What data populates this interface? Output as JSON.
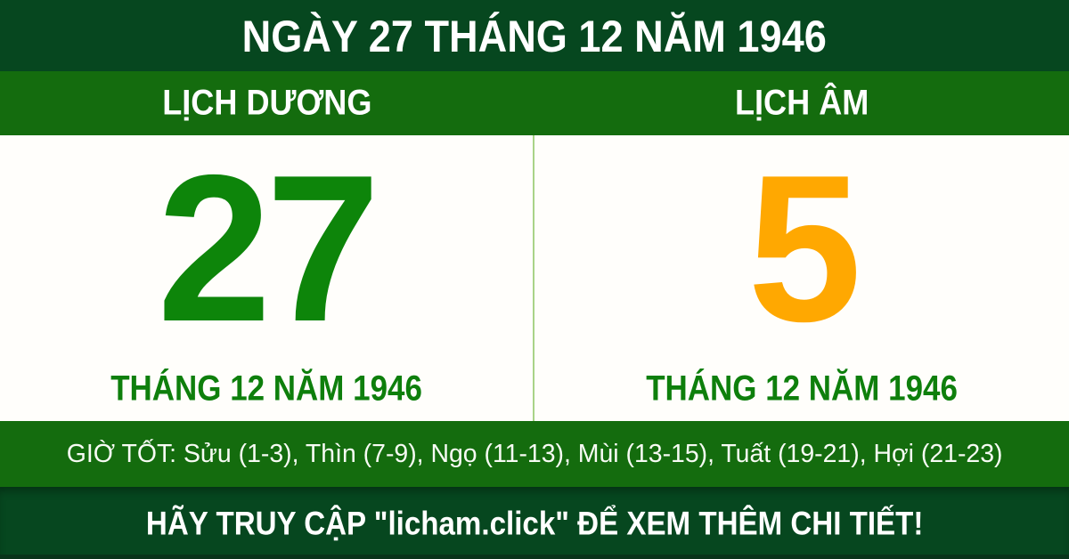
{
  "colors": {
    "dark_green": "#06471f",
    "band_green": "#146c0e",
    "solar_day_green": "#0d850a",
    "lunar_day_orange": "#ffa801",
    "month_text_green": "#0e7f0c",
    "panel_divider_light_green": "#a9d388",
    "panel_white": "#fffefb",
    "text_white": "#ffffff"
  },
  "header": {
    "title": "NGÀY 27 THÁNG 12 NĂM 1946"
  },
  "calendar": {
    "solar": {
      "label": "LỊCH DƯƠNG",
      "day": "27",
      "month_year": "THÁNG 12 NĂM 1946"
    },
    "lunar": {
      "label": "LỊCH ÂM",
      "day": "5",
      "month_year": "THÁNG 12 NĂM 1946"
    }
  },
  "good_hours": {
    "label": "GIỜ TỐT:",
    "hours": [
      "Sửu (1-3)",
      "Thìn (7-9)",
      "Ngọ (11-13)",
      "Mùi (13-15)",
      "Tuất (19-21)",
      "Hợi (21-23)"
    ],
    "text": "GIỜ TỐT: Sửu (1-3), Thìn (7-9), Ngọ (11-13), Mùi (13-15), Tuất (19-21), Hợi (21-23)"
  },
  "footer": {
    "site": "licham.click",
    "text": "HÃY TRUY CẬP \"licham.click\" ĐỂ XEM THÊM CHI TIẾT!"
  }
}
